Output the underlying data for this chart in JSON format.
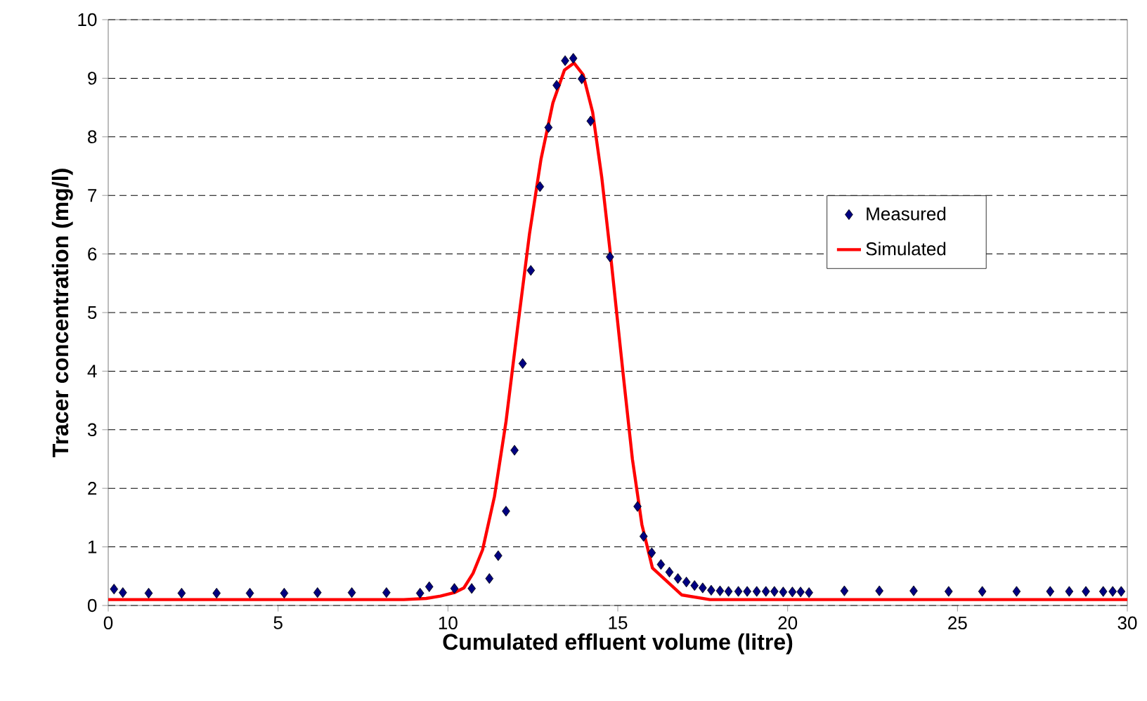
{
  "chart_data": {
    "type": "scatter",
    "xlabel": "Cumulated effluent volume (litre)",
    "ylabel": "Tracer concentration (mg/l)",
    "xlim": [
      0,
      30
    ],
    "ylim": [
      0,
      10
    ],
    "xticks": [
      0,
      5,
      10,
      15,
      20,
      25,
      30
    ],
    "yticks": [
      0,
      1,
      2,
      3,
      4,
      5,
      6,
      7,
      8,
      9,
      10
    ],
    "grid": "y",
    "legend": "right",
    "series": [
      {
        "name": "Measured",
        "marker": "diamond",
        "color": "#000080",
        "x": [
          0.17,
          0.43,
          1.19,
          2.16,
          3.19,
          4.17,
          5.18,
          6.16,
          7.17,
          8.19,
          9.18,
          9.45,
          10.19,
          10.7,
          11.22,
          11.48,
          11.71,
          11.96,
          12.2,
          12.44,
          12.71,
          12.96,
          13.2,
          13.45,
          13.69,
          13.94,
          14.2,
          14.77,
          15.58,
          15.76,
          16.0,
          16.27,
          16.52,
          16.77,
          17.02,
          17.26,
          17.5,
          17.75,
          18.01,
          18.26,
          18.55,
          18.81,
          19.09,
          19.36,
          19.61,
          19.87,
          20.14,
          20.38,
          20.63,
          21.67,
          22.7,
          23.71,
          24.74,
          25.73,
          26.74,
          27.73,
          28.29,
          28.78,
          29.29,
          29.57,
          29.82
        ],
        "values": [
          0.28,
          0.22,
          0.21,
          0.21,
          0.21,
          0.21,
          0.21,
          0.22,
          0.22,
          0.22,
          0.21,
          0.32,
          0.29,
          0.29,
          0.46,
          0.85,
          1.61,
          2.65,
          4.13,
          5.72,
          7.15,
          8.16,
          8.88,
          9.3,
          9.34,
          8.99,
          8.27,
          5.95,
          1.69,
          1.18,
          0.9,
          0.7,
          0.57,
          0.46,
          0.4,
          0.34,
          0.3,
          0.26,
          0.25,
          0.24,
          0.24,
          0.24,
          0.24,
          0.24,
          0.24,
          0.23,
          0.23,
          0.23,
          0.22,
          0.25,
          0.25,
          0.25,
          0.24,
          0.24,
          0.24,
          0.24,
          0.24,
          0.24,
          0.24,
          0.24,
          0.24
        ]
      },
      {
        "name": "Simulated",
        "type": "line",
        "line_style": "solid",
        "color": "#ff0000",
        "x": [
          0,
          8.7,
          9.36,
          9.78,
          10.19,
          10.47,
          10.74,
          11.02,
          11.37,
          11.71,
          12.05,
          12.4,
          12.74,
          13.09,
          13.43,
          13.71,
          13.98,
          14.26,
          14.53,
          14.81,
          15.16,
          15.43,
          15.71,
          16.02,
          16.88,
          17.71,
          30
        ],
        "values": [
          0.1,
          0.1,
          0.12,
          0.16,
          0.22,
          0.3,
          0.55,
          0.95,
          1.86,
          3.14,
          4.74,
          6.34,
          7.62,
          8.58,
          9.14,
          9.26,
          9.06,
          8.42,
          7.3,
          5.86,
          3.94,
          2.5,
          1.38,
          0.64,
          0.18,
          0.1,
          0.1
        ]
      }
    ]
  }
}
